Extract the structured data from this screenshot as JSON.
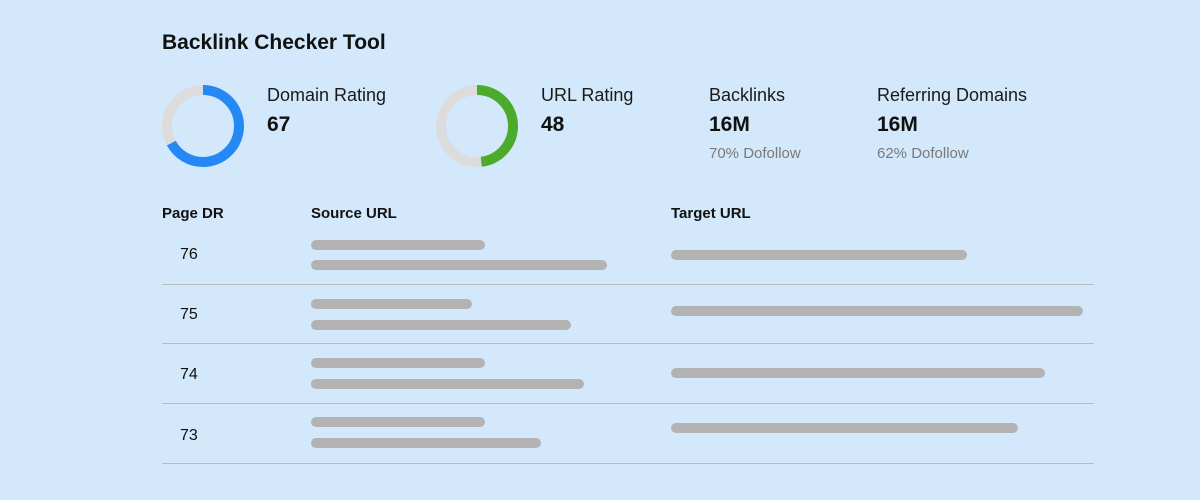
{
  "title": "Backlink Checker Tool",
  "metrics": {
    "domain_rating": {
      "label": "Domain Rating",
      "value": "67",
      "ring_fraction": 0.67,
      "color": "#2589f5"
    },
    "url_rating": {
      "label": "URL Rating",
      "value": "48",
      "ring_fraction": 0.48,
      "color": "#4caa2c"
    },
    "backlinks": {
      "label": "Backlinks",
      "value": "16M",
      "sub": "70% Dofollow"
    },
    "referring_domains": {
      "label": "Referring Domains",
      "value": "16M",
      "sub": "62% Dofollow"
    }
  },
  "table": {
    "headers": {
      "page_dr": "Page DR",
      "source_url": "Source URL",
      "target_url": "Target URL"
    },
    "rows": [
      {
        "page_dr": "76"
      },
      {
        "page_dr": "75"
      },
      {
        "page_dr": "74"
      },
      {
        "page_dr": "73"
      }
    ]
  },
  "colors": {
    "background": "#d3e8fa",
    "ring_track": "#dcdcdc",
    "placeholder_bar": "#b3b3b3"
  }
}
